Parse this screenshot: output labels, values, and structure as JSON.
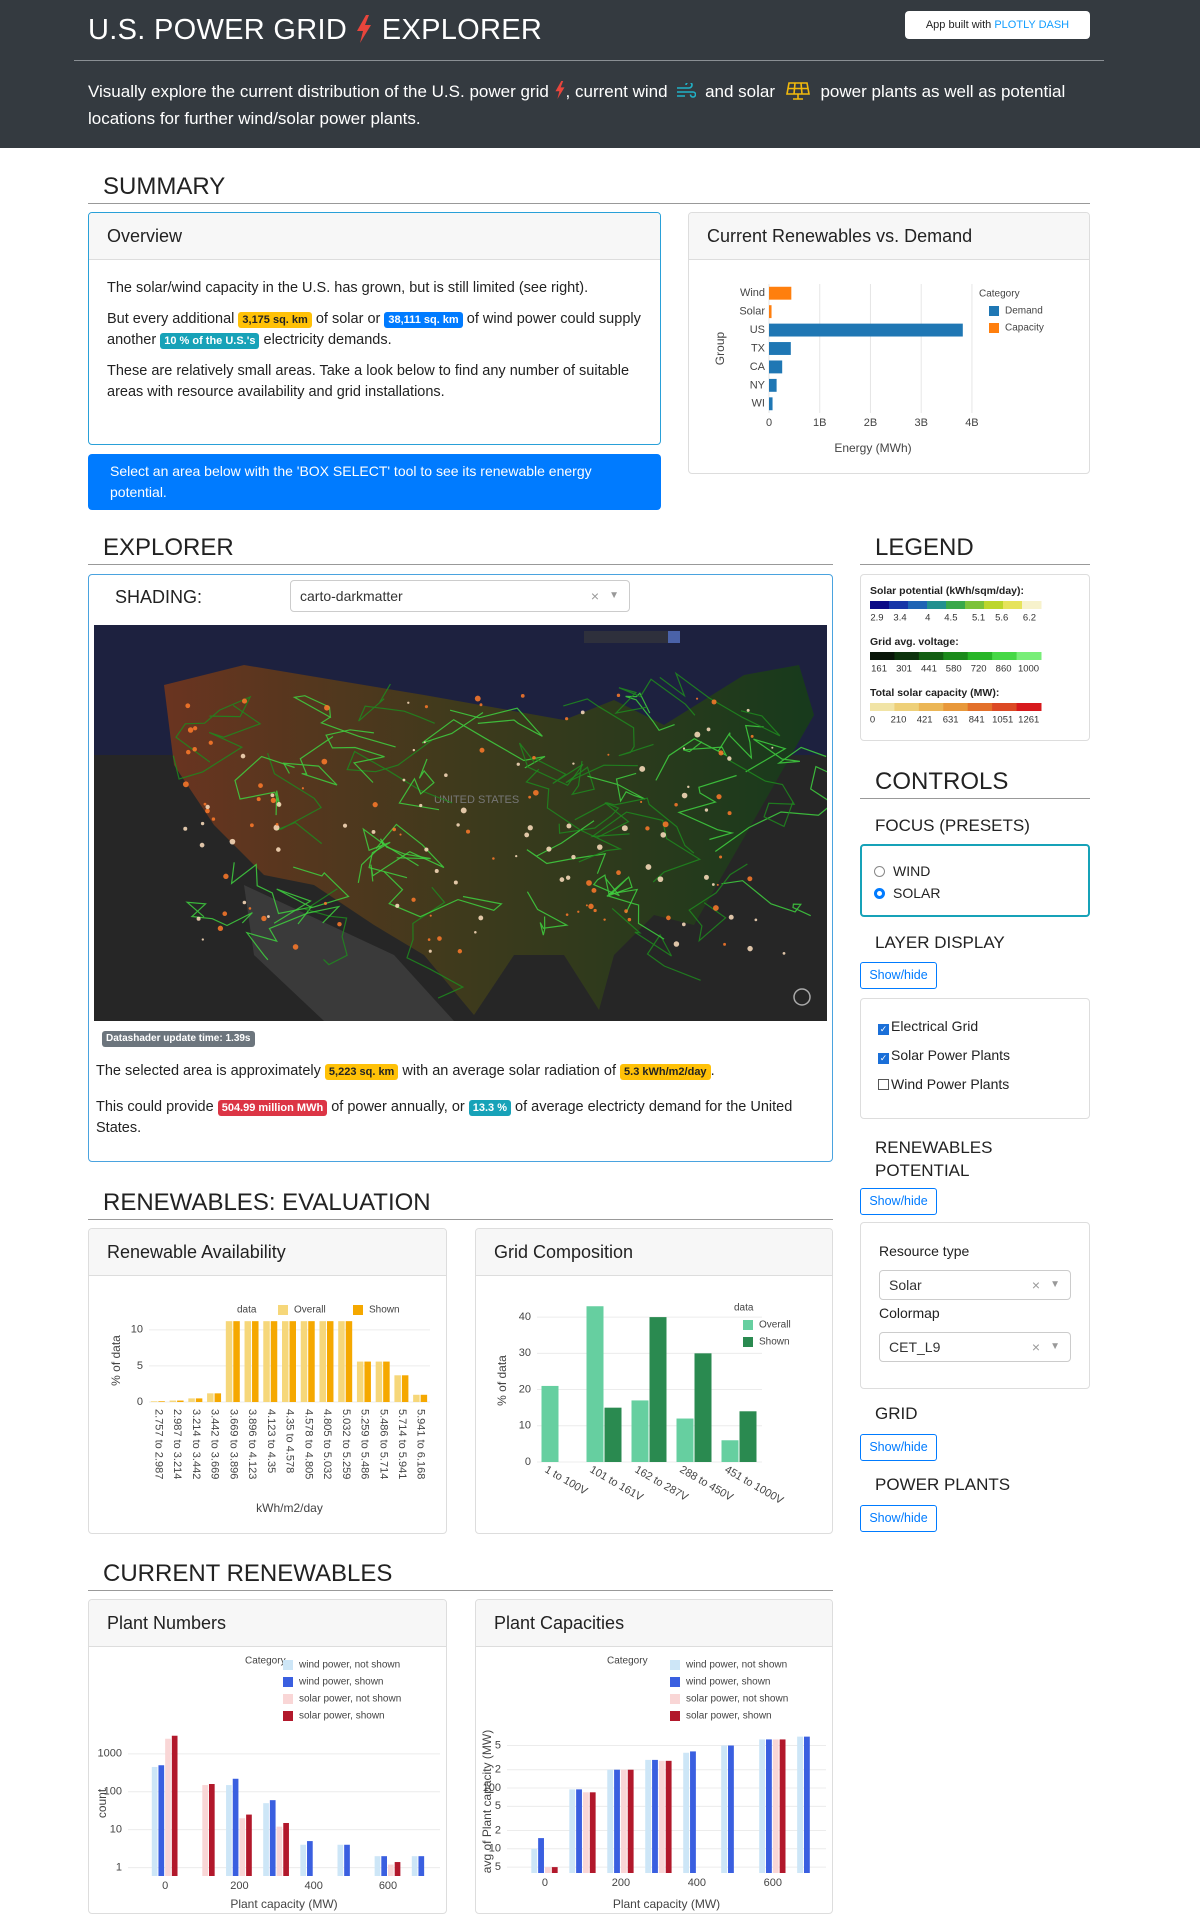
{
  "header": {
    "title_left": "U.S. POWER GRID",
    "title_right": "EXPLORER",
    "badge_prefix": "App built with",
    "badge_brand": "PLOTLY DASH",
    "intro": [
      "Visually explore the current distribution of the U.S. power grid",
      ", current wind",
      "and solar",
      "power plants as well as potential locations for further wind/solar power plants."
    ]
  },
  "summary": {
    "heading": "SUMMARY",
    "overview_title": "Overview",
    "p1": "The solar/wind capacity in the U.S. has grown, but is still limited (see right).",
    "p2": [
      "But every additional",
      "3,175 sq. km",
      "of solar or",
      "38,111 sq. km",
      "of wind power could supply another",
      "10 % of the U.S.'s",
      "electricity demands."
    ],
    "p3": "These are relatively small areas. Take a look below to find any number of suitable areas with resource availability and grid installations.",
    "alert": "Select an area below with the 'BOX SELECT' tool to see its renewable energy potential."
  },
  "explorer": {
    "heading": "EXPLORER",
    "shading_label": "SHADING:",
    "shading_value": "carto-darkmatter",
    "map_label": "UNITED STATES",
    "timing": "Datashader update time: 1.39s",
    "s1": [
      "The selected area is approximately",
      "5,223 sq. km",
      "with an average solar radiation of",
      "5.3 kWh/m2/day",
      "."
    ],
    "s2": [
      "This could provide",
      "504.99 million MWh",
      "of power annually, or",
      "13.3 %",
      "of average electricty demand for the United States."
    ]
  },
  "legend": {
    "heading": "LEGEND",
    "scales": [
      {
        "title": "Solar potential (kWh/sqm/day):",
        "colors": [
          "#0a0a86",
          "#1736a8",
          "#1f64b4",
          "#23908f",
          "#3aa84a",
          "#7cc23a",
          "#bcd62c",
          "#e6e35c",
          "#f7f2cc"
        ],
        "lim": [
          2.75,
          6.45
        ],
        "ticks": [
          2.9,
          3.4,
          4,
          4.5,
          5.1,
          5.6,
          6.2
        ]
      },
      {
        "title": "Grid avg. voltage:",
        "colors": [
          "#081508",
          "#0d330d",
          "#135f13",
          "#1b8a1b",
          "#27b527",
          "#45d845",
          "#78ee78"
        ],
        "lim": [
          110,
          1070
        ],
        "ticks": [
          161,
          301,
          441,
          580,
          720,
          860,
          1000
        ]
      },
      {
        "title": "Total solar capacity (MW):",
        "colors": [
          "#f1e4a6",
          "#eed079",
          "#ebb656",
          "#e8983a",
          "#e3702a",
          "#dc4924",
          "#d7191c"
        ],
        "lim": [
          -20,
          1360
        ],
        "ticks": [
          0,
          210,
          421,
          631,
          841,
          1051,
          1261
        ]
      }
    ]
  },
  "controls": {
    "heading": "CONTROLS",
    "focus": "FOCUS (PRESETS)",
    "focus_options": [
      "WIND",
      "SOLAR"
    ],
    "focus_selected": 1,
    "layer_display": "LAYER DISPLAY",
    "toggle": "Show/hide",
    "layers": [
      "Electrical Grid",
      "Solar Power Plants",
      "Wind Power Plants"
    ],
    "layers_checked": [
      true,
      true,
      false
    ],
    "renewables_potential": "RENEWABLES POTENTIAL",
    "resource_label": "Resource type",
    "resource_value": "Solar",
    "colormap_label": "Colormap",
    "colormap_value": "CET_L9",
    "grid": "GRID",
    "power_plants": "POWER PLANTS"
  },
  "sections": {
    "evaluation": "RENEWABLES: EVALUATION",
    "current": "CURRENT RENEWABLES"
  },
  "chart_data": [
    {
      "type": "bar",
      "title": "Current Renewables vs. Demand",
      "orientation": "horizontal",
      "barmode": "overlay",
      "categories": [
        "Wind",
        "Solar",
        "US",
        "TX",
        "CA",
        "NY",
        "WI"
      ],
      "series": [
        {
          "name": "Demand",
          "color": "#1f77b4",
          "values": [
            null,
            null,
            3820000000,
            430000000,
            260000000,
            150000000,
            70000000
          ]
        },
        {
          "name": "Capacity",
          "color": "#ff7f0e",
          "values": [
            440000000,
            50000000,
            null,
            null,
            null,
            null,
            null
          ]
        }
      ],
      "xlim": [
        0,
        4100000000
      ],
      "xticks": [
        0,
        {
          "value": 1000000000,
          "label": "1B"
        },
        {
          "value": 2000000000,
          "label": "2B"
        },
        {
          "value": 3000000000,
          "label": "3B"
        },
        {
          "value": 4000000000,
          "label": "4B"
        }
      ],
      "x_label": "Energy (MWh)",
      "y_label": "Group",
      "legend_title": "Category",
      "legend": "right",
      "grid": true
    },
    {
      "type": "bar",
      "title": "Renewable Availability",
      "categories": [
        "2.757 to 2.987",
        "2.987 to 3.214",
        "3.214 to 3.442",
        "3.442 to 3.669",
        "3.669 to 3.896",
        "3.896 to 4.123",
        "4.123 to 4.35",
        "4.35 to 4.578",
        "4.578 to 4.805",
        "4.805 to 5.032",
        "5.032 to 5.259",
        "5.259 to 5.486",
        "5.486 to 5.714",
        "5.714 to 5.941",
        "5.941 to 6.168"
      ],
      "series": [
        {
          "name": "Overall",
          "color": "#f6d77a",
          "values": [
            0.1,
            0.2,
            0.5,
            1.2,
            11.2,
            11.2,
            11.2,
            11.2,
            11.2,
            11.2,
            11.2,
            5.6,
            5.6,
            3.7,
            1.0
          ]
        },
        {
          "name": "Shown",
          "color": "#f5a800",
          "values": [
            0.1,
            0.2,
            0.5,
            1.2,
            11.2,
            11.2,
            11.2,
            11.2,
            11.2,
            11.2,
            11.2,
            5.6,
            5.6,
            3.7,
            1.0
          ]
        }
      ],
      "ylim": [
        0,
        11.5
      ],
      "yticks": [
        0,
        5,
        10
      ],
      "x_label": "kWh/m2/day",
      "y_label": "% of data",
      "legend_title": "data",
      "legend": "top",
      "grid": true
    },
    {
      "type": "bar",
      "title": "Grid Composition",
      "categories": [
        "1 to 100V",
        "101 to 161V",
        "162 to 287V",
        "288 to 450V",
        "451 to 1000V"
      ],
      "series": [
        {
          "name": "Overall",
          "color": "#66cfa0",
          "values": [
            21,
            43,
            17,
            12,
            6
          ]
        },
        {
          "name": "Shown",
          "color": "#2a8a50",
          "values": [
            0,
            15,
            40,
            30,
            14
          ]
        }
      ],
      "ylim": [
        0,
        45
      ],
      "yticks": [
        0,
        10,
        20,
        30,
        40
      ],
      "y_label": "% of data",
      "legend_title": "data",
      "legend": "right",
      "grid": true
    },
    {
      "type": "bar",
      "title": "Plant Numbers",
      "x": [
        0,
        100,
        200,
        300,
        400,
        500,
        600,
        700
      ],
      "series": [
        {
          "name": "wind power, not shown",
          "color": "#cde6f7",
          "values": [
            450,
            null,
            150,
            50,
            4,
            4,
            2,
            2
          ]
        },
        {
          "name": "wind power, shown",
          "color": "#3a5fe0",
          "values": [
            500,
            null,
            220,
            60,
            5,
            4,
            2,
            2
          ]
        },
        {
          "name": "solar power, not shown",
          "color": "#f9d6d6",
          "values": [
            2500,
            150,
            20,
            12,
            null,
            null,
            1.2,
            null
          ]
        },
        {
          "name": "solar power, shown",
          "color": "#b2182b",
          "values": [
            3000,
            160,
            25,
            15,
            null,
            null,
            1.4,
            null
          ]
        }
      ],
      "xlim": [
        -100,
        740
      ],
      "xticks": [
        0,
        200,
        400,
        600
      ],
      "ylim": [
        0.6,
        4000
      ],
      "yticks": [
        1,
        10,
        100,
        1000
      ],
      "log": true,
      "x_label": "Plant capacity (MW)",
      "y_label": "count",
      "legend_title": "Category",
      "legend": "right",
      "grid": true
    },
    {
      "type": "bar",
      "title": "Plant Capacities",
      "x": [
        0,
        100,
        200,
        300,
        400,
        500,
        600,
        700
      ],
      "series": [
        {
          "name": "wind power, not shown",
          "color": "#cde6f7",
          "values": [
            10,
            95,
            200,
            290,
            380,
            500,
            630,
            700
          ]
        },
        {
          "name": "wind power, shown",
          "color": "#3a5fe0",
          "values": [
            15,
            95,
            200,
            290,
            400,
            500,
            630,
            700
          ]
        },
        {
          "name": "solar power, not shown",
          "color": "#f9d6d6",
          "values": [
            5,
            85,
            200,
            280,
            null,
            null,
            630,
            null
          ]
        },
        {
          "name": "solar power, shown",
          "color": "#b2182b",
          "values": [
            5,
            85,
            200,
            280,
            null,
            null,
            630,
            null
          ]
        }
      ],
      "xlim": [
        -100,
        740
      ],
      "xticks": [
        0,
        200,
        400,
        600
      ],
      "ylim": [
        4,
        900
      ],
      "yticks": [
        5,
        10,
        {
          "value": 20,
          "label": "2"
        },
        {
          "value": 50,
          "label": "5"
        },
        100,
        {
          "value": 200,
          "label": "2"
        },
        {
          "value": 500,
          "label": "5"
        }
      ],
      "log": true,
      "x_label": "Plant capacity (MW)",
      "y_label": "avg of Plant capacity (MW)",
      "legend_title": "Category",
      "legend": "right",
      "grid": true
    }
  ]
}
